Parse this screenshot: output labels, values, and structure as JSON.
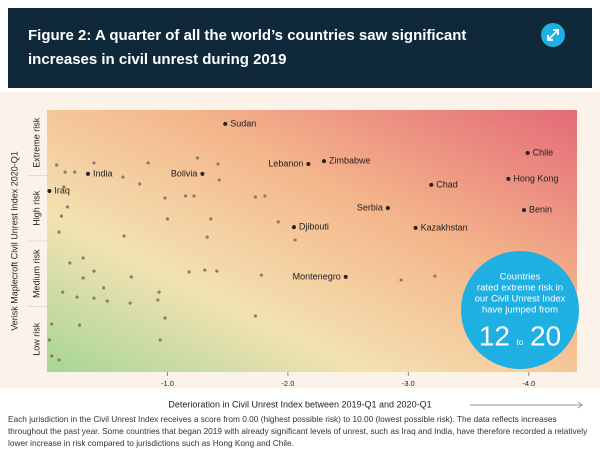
{
  "header": {
    "title": "Figure 2: A quarter of all the world’s countries saw significant increases in civil unrest during 2019"
  },
  "chart_data": {
    "type": "scatter",
    "y_title": "Verisk Maplecroft Civil Unrest Index 2020-Q1",
    "x_title": "Deterioration in Civil Unrest Index between 2019-Q1 and 2020-Q1",
    "xlim": [
      0,
      -4.4
    ],
    "xticks": [
      {
        "value": -1,
        "label": "-1.0"
      },
      {
        "value": -2,
        "label": "-2.0"
      },
      {
        "value": -3,
        "label": "-3.0"
      },
      {
        "value": -4,
        "label": "-4.0"
      }
    ],
    "ylim": [
      10,
      0
    ],
    "y_bands": [
      {
        "label": "Extreme risk",
        "from": 0,
        "to": 2.5
      },
      {
        "label": "High risk",
        "from": 2.5,
        "to": 5
      },
      {
        "label": "Medium risk",
        "from": 5,
        "to": 7.5
      },
      {
        "label": "Low risk",
        "from": 7.5,
        "to": 10
      }
    ],
    "named_points": {
      "color": "#222222",
      "labels": [
        "Sudan",
        "Lebanon",
        "Zimbabwe",
        "Chile",
        "Bolivia",
        "India",
        "Iraq",
        "Chad",
        "Hong Kong",
        "Serbia",
        "Benin",
        "Djibouti",
        "Kazakhstan",
        "Montenegro"
      ],
      "x": [
        -1.48,
        -2.17,
        -2.3,
        -3.99,
        -1.29,
        -0.34,
        -0.02,
        -3.19,
        -3.83,
        -2.83,
        -3.96,
        -2.05,
        -3.06,
        -2.48
      ],
      "y": [
        0.53,
        2.06,
        1.95,
        1.64,
        2.44,
        2.44,
        3.09,
        2.86,
        2.63,
        3.74,
        3.82,
        4.47,
        4.5,
        6.37
      ]
    },
    "other_points": {
      "color": "#8c7b6b",
      "x": [
        -0.08,
        -0.15,
        -0.23,
        -0.14,
        -0.17,
        -0.12,
        -0.1,
        -0.39,
        -0.63,
        -0.84,
        -0.64,
        -0.77,
        -0.98,
        -1.0,
        -1.25,
        -1.42,
        -1.43,
        -1.36,
        -1.33,
        -1.22,
        -1.73,
        -1.81,
        -1.92,
        -2.06,
        -0.3,
        -0.39,
        -0.3,
        -0.19,
        -0.13,
        -0.25,
        -0.39,
        -0.47,
        -0.7,
        -0.93,
        -0.92,
        -0.69,
        -0.98,
        -0.94,
        -1.18,
        -1.31,
        -1.41,
        -1.78,
        -1.73,
        -2.94,
        -3.22,
        -0.27,
        -0.04,
        -0.02,
        -0.04,
        -0.1,
        -0.5,
        -1.15
      ],
      "y": [
        2.1,
        2.37,
        2.37,
        2.94,
        3.7,
        4.05,
        4.66,
        2.02,
        2.56,
        2.02,
        4.81,
        2.82,
        3.36,
        4.16,
        1.83,
        2.06,
        2.67,
        4.16,
        4.85,
        3.28,
        3.32,
        3.28,
        4.27,
        4.96,
        5.65,
        6.15,
        6.41,
        5.84,
        6.95,
        7.14,
        7.18,
        6.79,
        6.37,
        6.95,
        7.25,
        7.37,
        7.94,
        8.78,
        6.18,
        6.11,
        6.15,
        6.3,
        7.86,
        6.49,
        6.34,
        8.21,
        8.17,
        8.78,
        9.39,
        9.54,
        7.29,
        3.28
      ]
    },
    "callout": {
      "lines": [
        "Countries",
        "rated extreme risk in",
        "our Civil Unrest Index",
        "have jumped from"
      ],
      "from": "12",
      "to_word": "to",
      "to": "20",
      "color": "#1fb0e3"
    }
  },
  "footnote": "Each jurisdiction in the Civil Unrest Index receives a score from 0.00 (highest possible risk) to 10.00 (lowest possible risk). The data reflects increases throughout the past year. Some countries that began 2019 with already significant levels of unrest, such as Iraq and India, have therefore recorded a relatively lower increase in risk compared to jurisdictions such as Hong Kong and Chile."
}
